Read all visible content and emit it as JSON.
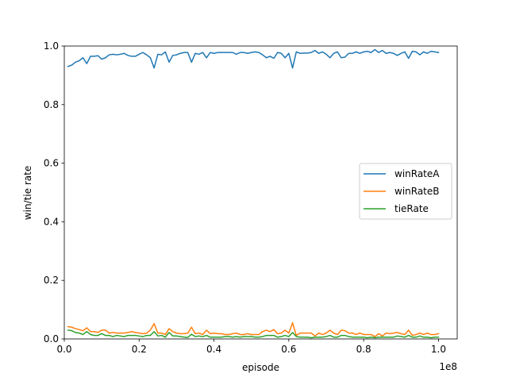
{
  "chart_data": {
    "type": "line",
    "title": "",
    "xlabel": "episode",
    "ylabel": "win/tie rate",
    "x_scale_label": "1e8",
    "xlim": [
      0,
      1.05
    ],
    "ylim": [
      0,
      1.0
    ],
    "x_ticks": [
      "0.0",
      "0.2",
      "0.4",
      "0.6",
      "0.8",
      "1.0"
    ],
    "y_ticks": [
      "0.0",
      "0.2",
      "0.4",
      "0.6",
      "0.8",
      "1.0"
    ],
    "grid": false,
    "legend_position": "center-right",
    "x": [
      0.01,
      0.02,
      0.03,
      0.04,
      0.05,
      0.06,
      0.07,
      0.08,
      0.09,
      0.1,
      0.11,
      0.12,
      0.13,
      0.14,
      0.15,
      0.16,
      0.17,
      0.18,
      0.19,
      0.2,
      0.21,
      0.22,
      0.23,
      0.24,
      0.25,
      0.26,
      0.27,
      0.28,
      0.29,
      0.3,
      0.31,
      0.32,
      0.33,
      0.34,
      0.35,
      0.36,
      0.37,
      0.38,
      0.39,
      0.4,
      0.41,
      0.42,
      0.43,
      0.44,
      0.45,
      0.46,
      0.47,
      0.48,
      0.49,
      0.5,
      0.51,
      0.52,
      0.53,
      0.54,
      0.55,
      0.56,
      0.57,
      0.58,
      0.59,
      0.6,
      0.61,
      0.62,
      0.63,
      0.64,
      0.65,
      0.66,
      0.67,
      0.68,
      0.69,
      0.7,
      0.71,
      0.72,
      0.73,
      0.74,
      0.75,
      0.76,
      0.77,
      0.78,
      0.79,
      0.8,
      0.81,
      0.82,
      0.83,
      0.84,
      0.85,
      0.86,
      0.87,
      0.88,
      0.89,
      0.9,
      0.91,
      0.92,
      0.93,
      0.94,
      0.95,
      0.96,
      0.97,
      0.98,
      0.99,
      1.0
    ],
    "series": [
      {
        "name": "winRateA",
        "color": "#1f77b4",
        "values": [
          0.93,
          0.935,
          0.945,
          0.95,
          0.96,
          0.94,
          0.965,
          0.965,
          0.967,
          0.955,
          0.96,
          0.97,
          0.972,
          0.97,
          0.972,
          0.975,
          0.968,
          0.965,
          0.965,
          0.972,
          0.978,
          0.97,
          0.96,
          0.925,
          0.972,
          0.97,
          0.98,
          0.945,
          0.968,
          0.97,
          0.975,
          0.978,
          0.978,
          0.945,
          0.975,
          0.972,
          0.978,
          0.96,
          0.978,
          0.975,
          0.978,
          0.978,
          0.978,
          0.978,
          0.978,
          0.972,
          0.978,
          0.978,
          0.975,
          0.978,
          0.98,
          0.978,
          0.97,
          0.96,
          0.965,
          0.958,
          0.978,
          0.975,
          0.96,
          0.975,
          0.925,
          0.98,
          0.975,
          0.976,
          0.976,
          0.978,
          0.985,
          0.975,
          0.98,
          0.972,
          0.96,
          0.975,
          0.98,
          0.96,
          0.962,
          0.975,
          0.975,
          0.98,
          0.975,
          0.98,
          0.982,
          0.978,
          0.988,
          0.978,
          0.985,
          0.975,
          0.978,
          0.975,
          0.968,
          0.975,
          0.98,
          0.958,
          0.982,
          0.98,
          0.97,
          0.98,
          0.975,
          0.982,
          0.98,
          0.978
        ]
      },
      {
        "name": "winRateB",
        "color": "#ff7f0e",
        "values": [
          0.042,
          0.04,
          0.035,
          0.032,
          0.028,
          0.038,
          0.025,
          0.025,
          0.022,
          0.03,
          0.03,
          0.02,
          0.022,
          0.02,
          0.02,
          0.02,
          0.022,
          0.025,
          0.022,
          0.02,
          0.018,
          0.02,
          0.03,
          0.052,
          0.02,
          0.02,
          0.015,
          0.035,
          0.025,
          0.02,
          0.018,
          0.018,
          0.02,
          0.04,
          0.018,
          0.02,
          0.015,
          0.03,
          0.018,
          0.02,
          0.018,
          0.018,
          0.015,
          0.015,
          0.018,
          0.02,
          0.015,
          0.015,
          0.018,
          0.015,
          0.015,
          0.015,
          0.025,
          0.03,
          0.025,
          0.032,
          0.018,
          0.02,
          0.03,
          0.02,
          0.055,
          0.012,
          0.02,
          0.02,
          0.02,
          0.02,
          0.01,
          0.02,
          0.015,
          0.02,
          0.03,
          0.02,
          0.015,
          0.03,
          0.028,
          0.02,
          0.02,
          0.015,
          0.02,
          0.015,
          0.015,
          0.015,
          0.008,
          0.018,
          0.01,
          0.02,
          0.018,
          0.02,
          0.022,
          0.018,
          0.015,
          0.03,
          0.012,
          0.015,
          0.02,
          0.015,
          0.02,
          0.015,
          0.015,
          0.018
        ]
      },
      {
        "name": "tieRate",
        "color": "#2ca02c",
        "values": [
          0.03,
          0.028,
          0.022,
          0.02,
          0.015,
          0.025,
          0.015,
          0.012,
          0.012,
          0.018,
          0.012,
          0.012,
          0.008,
          0.012,
          0.01,
          0.008,
          0.012,
          0.012,
          0.012,
          0.01,
          0.008,
          0.012,
          0.012,
          0.025,
          0.01,
          0.012,
          0.006,
          0.022,
          0.01,
          0.01,
          0.008,
          0.006,
          0.005,
          0.016,
          0.008,
          0.01,
          0.008,
          0.012,
          0.006,
          0.006,
          0.006,
          0.006,
          0.008,
          0.008,
          0.006,
          0.008,
          0.006,
          0.008,
          0.008,
          0.008,
          0.006,
          0.006,
          0.008,
          0.012,
          0.012,
          0.012,
          0.006,
          0.008,
          0.012,
          0.008,
          0.022,
          0.008,
          0.006,
          0.006,
          0.006,
          0.004,
          0.006,
          0.006,
          0.006,
          0.008,
          0.012,
          0.006,
          0.006,
          0.012,
          0.012,
          0.008,
          0.006,
          0.006,
          0.006,
          0.006,
          0.004,
          0.006,
          0.004,
          0.006,
          0.006,
          0.006,
          0.006,
          0.006,
          0.01,
          0.008,
          0.006,
          0.012,
          0.006,
          0.006,
          0.01,
          0.006,
          0.006,
          0.004,
          0.006,
          0.006
        ]
      }
    ]
  }
}
